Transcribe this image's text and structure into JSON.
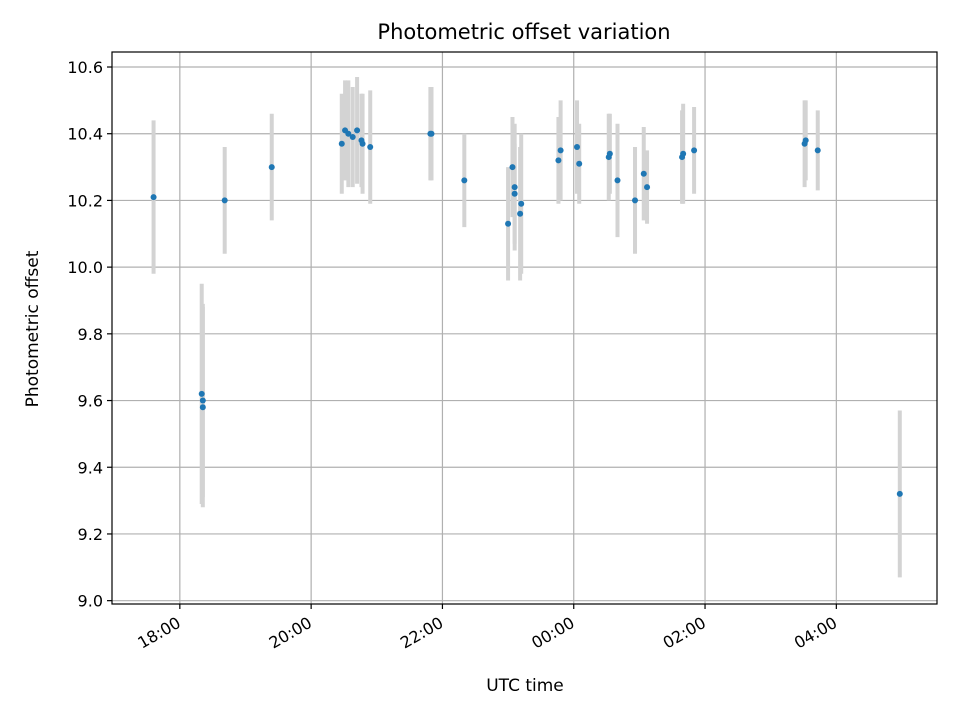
{
  "chart_data": {
    "type": "scatter",
    "title": "Photometric offset variation",
    "xlabel": "UTC time",
    "ylabel": "Photometric offset",
    "grid": true,
    "x_tick_labels": [
      "18:00",
      "20:00",
      "22:00",
      "00:00",
      "02:00",
      "04:00"
    ],
    "y_tick_labels": [
      "9.0",
      "9.2",
      "9.4",
      "9.6",
      "9.8",
      "10.0",
      "10.2",
      "10.4",
      "10.6"
    ],
    "x_ticks": [
      "2023-01-01T18:00",
      "2023-01-01T20:00",
      "2023-01-01T22:00",
      "2023-01-02T00:00",
      "2023-01-02T02:00",
      "2023-01-02T04:00"
    ],
    "y_ticks": [
      9.0,
      9.2,
      9.4,
      9.6,
      9.8,
      10.0,
      10.2,
      10.4,
      10.6
    ],
    "xlim": [
      "2023-01-01T16:58",
      "2023-01-02T05:32"
    ],
    "ylim": [
      8.99,
      10.645
    ],
    "marker_color": "#1f77b4",
    "errorbar_color": "#d3d3d3",
    "points": [
      {
        "x": "2023-01-01T17:36",
        "y": 10.21,
        "yerr": 0.23
      },
      {
        "x": "2023-01-01T18:20",
        "y": 9.62,
        "yerr": 0.33
      },
      {
        "x": "2023-01-01T18:21",
        "y": 9.6,
        "yerr": 0.29
      },
      {
        "x": "2023-01-01T18:21",
        "y": 9.58,
        "yerr": 0.3
      },
      {
        "x": "2023-01-01T18:41",
        "y": 10.2,
        "yerr": 0.16
      },
      {
        "x": "2023-01-01T19:24",
        "y": 10.3,
        "yerr": 0.16
      },
      {
        "x": "2023-01-01T20:28",
        "y": 10.37,
        "yerr": 0.15
      },
      {
        "x": "2023-01-01T20:31",
        "y": 10.41,
        "yerr": 0.15
      },
      {
        "x": "2023-01-01T20:34",
        "y": 10.4,
        "yerr": 0.16
      },
      {
        "x": "2023-01-01T20:38",
        "y": 10.39,
        "yerr": 0.15
      },
      {
        "x": "2023-01-01T20:42",
        "y": 10.41,
        "yerr": 0.16
      },
      {
        "x": "2023-01-01T20:46",
        "y": 10.38,
        "yerr": 0.14
      },
      {
        "x": "2023-01-01T20:47",
        "y": 10.37,
        "yerr": 0.15
      },
      {
        "x": "2023-01-01T20:54",
        "y": 10.36,
        "yerr": 0.17
      },
      {
        "x": "2023-01-01T21:49",
        "y": 10.4,
        "yerr": 0.14
      },
      {
        "x": "2023-01-01T21:50",
        "y": 10.4,
        "yerr": 0.14
      },
      {
        "x": "2023-01-01T22:20",
        "y": 10.26,
        "yerr": 0.14
      },
      {
        "x": "2023-01-01T23:00",
        "y": 10.13,
        "yerr": 0.17
      },
      {
        "x": "2023-01-01T23:04",
        "y": 10.3,
        "yerr": 0.15
      },
      {
        "x": "2023-01-01T23:06",
        "y": 10.24,
        "yerr": 0.19
      },
      {
        "x": "2023-01-01T23:06",
        "y": 10.22,
        "yerr": 0.15
      },
      {
        "x": "2023-01-01T23:12",
        "y": 10.19,
        "yerr": 0.21
      },
      {
        "x": "2023-01-01T23:11",
        "y": 10.16,
        "yerr": 0.2
      },
      {
        "x": "2023-01-01T23:46",
        "y": 10.32,
        "yerr": 0.13
      },
      {
        "x": "2023-01-01T23:48",
        "y": 10.35,
        "yerr": 0.15
      },
      {
        "x": "2023-01-02T00:03",
        "y": 10.36,
        "yerr": 0.14
      },
      {
        "x": "2023-01-02T00:05",
        "y": 10.31,
        "yerr": 0.12
      },
      {
        "x": "2023-01-02T00:32",
        "y": 10.33,
        "yerr": 0.13
      },
      {
        "x": "2023-01-02T00:33",
        "y": 10.34,
        "yerr": 0.12
      },
      {
        "x": "2023-01-02T00:40",
        "y": 10.26,
        "yerr": 0.17
      },
      {
        "x": "2023-01-02T00:56",
        "y": 10.2,
        "yerr": 0.16
      },
      {
        "x": "2023-01-02T01:04",
        "y": 10.28,
        "yerr": 0.14
      },
      {
        "x": "2023-01-02T01:07",
        "y": 10.24,
        "yerr": 0.11
      },
      {
        "x": "2023-01-02T01:39",
        "y": 10.33,
        "yerr": 0.14
      },
      {
        "x": "2023-01-02T01:40",
        "y": 10.34,
        "yerr": 0.15
      },
      {
        "x": "2023-01-02T01:50",
        "y": 10.35,
        "yerr": 0.13
      },
      {
        "x": "2023-01-02T03:31",
        "y": 10.37,
        "yerr": 0.13
      },
      {
        "x": "2023-01-02T03:32",
        "y": 10.38,
        "yerr": 0.12
      },
      {
        "x": "2023-01-02T03:43",
        "y": 10.35,
        "yerr": 0.12
      },
      {
        "x": "2023-01-02T04:58",
        "y": 9.32,
        "yerr": 0.25
      }
    ]
  }
}
